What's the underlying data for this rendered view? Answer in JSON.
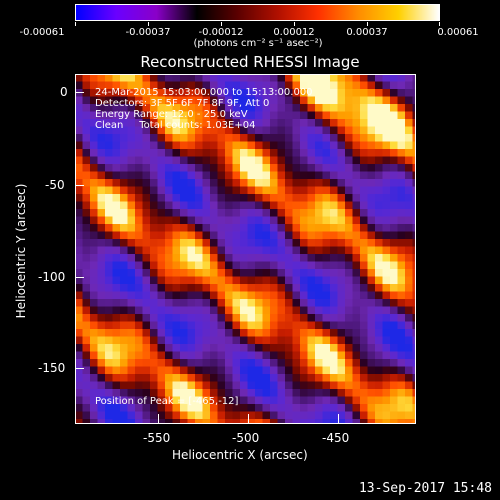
{
  "colorbar": {
    "tick_labels": [
      "-0.00061",
      "-0.00037",
      "-0.00012",
      "0.00012",
      "0.00037",
      "0.00061"
    ],
    "units": "(photons cm⁻² s⁻¹ asec⁻²)",
    "gradient_colors": [
      "#0000ff",
      "#6a00ff",
      "#8a00c8",
      "#000000",
      "#5a0000",
      "#b01000",
      "#ff3000",
      "#ff8c00",
      "#ffd000",
      "#ffffff"
    ]
  },
  "title": "Reconstructed RHESSI Image",
  "info": {
    "time": "24-Mar-2015 15:03:00.000 to 15:13:00.000",
    "detectors": "Detectors: 3F 5F 6F 7F 8F 9F, Att 0",
    "energy": "Energy Range: 12.0 - 25.0 keV",
    "method": "Clean     Total counts: 1.03E+04",
    "peak": "Position of Peak = [-465,-12]"
  },
  "axes": {
    "xlabel": "Heliocentric X (arcsec)",
    "ylabel": "Heliocentric Y (arcsec)",
    "xticks": [
      "-550",
      "-500",
      "-450"
    ],
    "yticks": [
      "0",
      "-50",
      "-100",
      "-150"
    ]
  },
  "footer": "13-Sep-2017 15:48"
}
